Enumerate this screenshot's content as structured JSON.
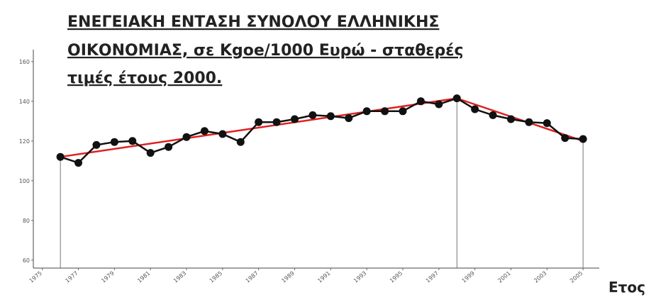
{
  "chart_data": {
    "type": "line",
    "title_lines": [
      "ΕΝΕΓΕΙΑΚΗ ΕΝΤΑΣΗ ΣΥΝΟΛΟΥ ΕΛΛΗΝΙΚΗΣ",
      "ΟΙΚΟΝΟΜΙΑΣ, σε Kgoe/1000 Ευρώ - σταθερές",
      "τιμές έτους 2000."
    ],
    "x_label": "Ετος",
    "x": [
      1976,
      1977,
      1978,
      1979,
      1980,
      1981,
      1982,
      1983,
      1984,
      1985,
      1986,
      1987,
      1988,
      1989,
      1990,
      1991,
      1992,
      1993,
      1994,
      1995,
      1996,
      1997,
      1998,
      1999,
      2000,
      2001,
      2002,
      2003,
      2004,
      2005
    ],
    "series": [
      {
        "color": "#111111",
        "values": [
          112,
          109,
          118,
          119.5,
          120,
          114,
          117,
          122,
          125,
          123.5,
          119.5,
          129.5,
          129.5,
          131,
          133,
          132.5,
          131.5,
          135,
          135,
          135,
          140,
          138.5,
          141.5,
          136,
          133,
          131,
          129.5,
          129,
          121.5,
          121
        ]
      }
    ],
    "trend": {
      "color": "#e02020",
      "x": [
        1976,
        1998,
        2005
      ],
      "values": [
        112,
        141.5,
        120
      ]
    },
    "xlim": [
      1974.5,
      2005.9
    ],
    "xticks": [
      1975,
      1977,
      1979,
      1981,
      1983,
      1985,
      1987,
      1989,
      1991,
      1993,
      1995,
      1997,
      1999,
      2001,
      2003,
      2005
    ],
    "ylim": [
      56,
      166
    ],
    "yticks": [
      60,
      80,
      100,
      120,
      140,
      160
    ]
  }
}
